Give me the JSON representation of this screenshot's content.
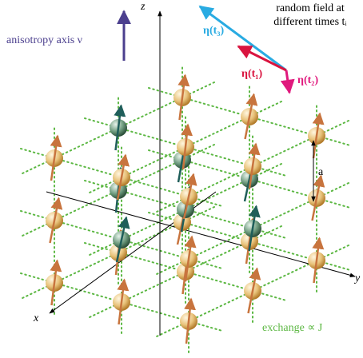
{
  "axes": {
    "z": "z",
    "y": "y",
    "x": "x"
  },
  "anisotropy": {
    "label": "anisotropy axis ν"
  },
  "random_field": {
    "title_lines": [
      "random field at",
      "different times tᵢ"
    ],
    "eta_t3": "η(t₃)",
    "eta_t1": "η(t₁)",
    "eta_t2": "η(t₂)"
  },
  "spacing": {
    "label": "a"
  },
  "exchange": {
    "label": "exchange ∝ J"
  }
}
